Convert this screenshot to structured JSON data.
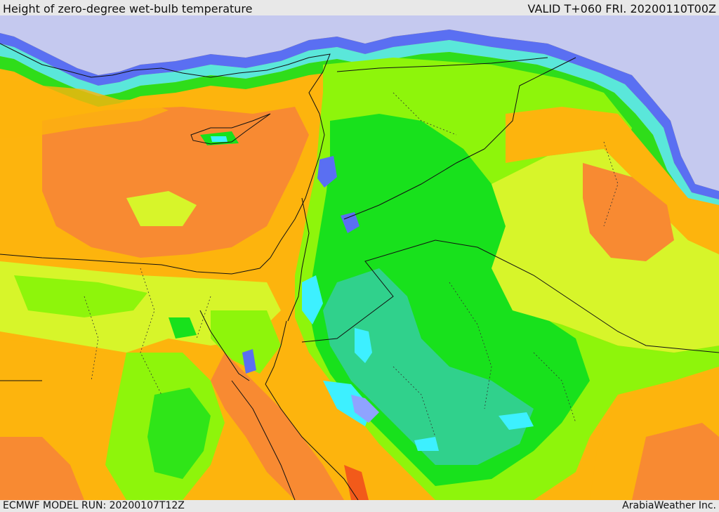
{
  "header": {
    "title": "Height of zero-degree wet-bulb temperature",
    "valid": "VALID T+060 FRI. 20200110T00Z"
  },
  "footer": {
    "model_run": "ECMWF MODEL RUN: 20200107T12Z",
    "brand": "ArabiaWeather Inc."
  },
  "palette": {
    "sea_lowest": "#c5c9ef",
    "blue": "#5a6ff2",
    "light_blue": "#8fa3ff",
    "cyan": "#3df0ff",
    "teal": "#30d18c",
    "green": "#18e11c",
    "lime": "#8ef50b",
    "yellow_green": "#d7f52a",
    "orange": "#fdb40d",
    "dark_orange": "#f88a32",
    "red_orange": "#f25a1a",
    "border": "#111111"
  }
}
